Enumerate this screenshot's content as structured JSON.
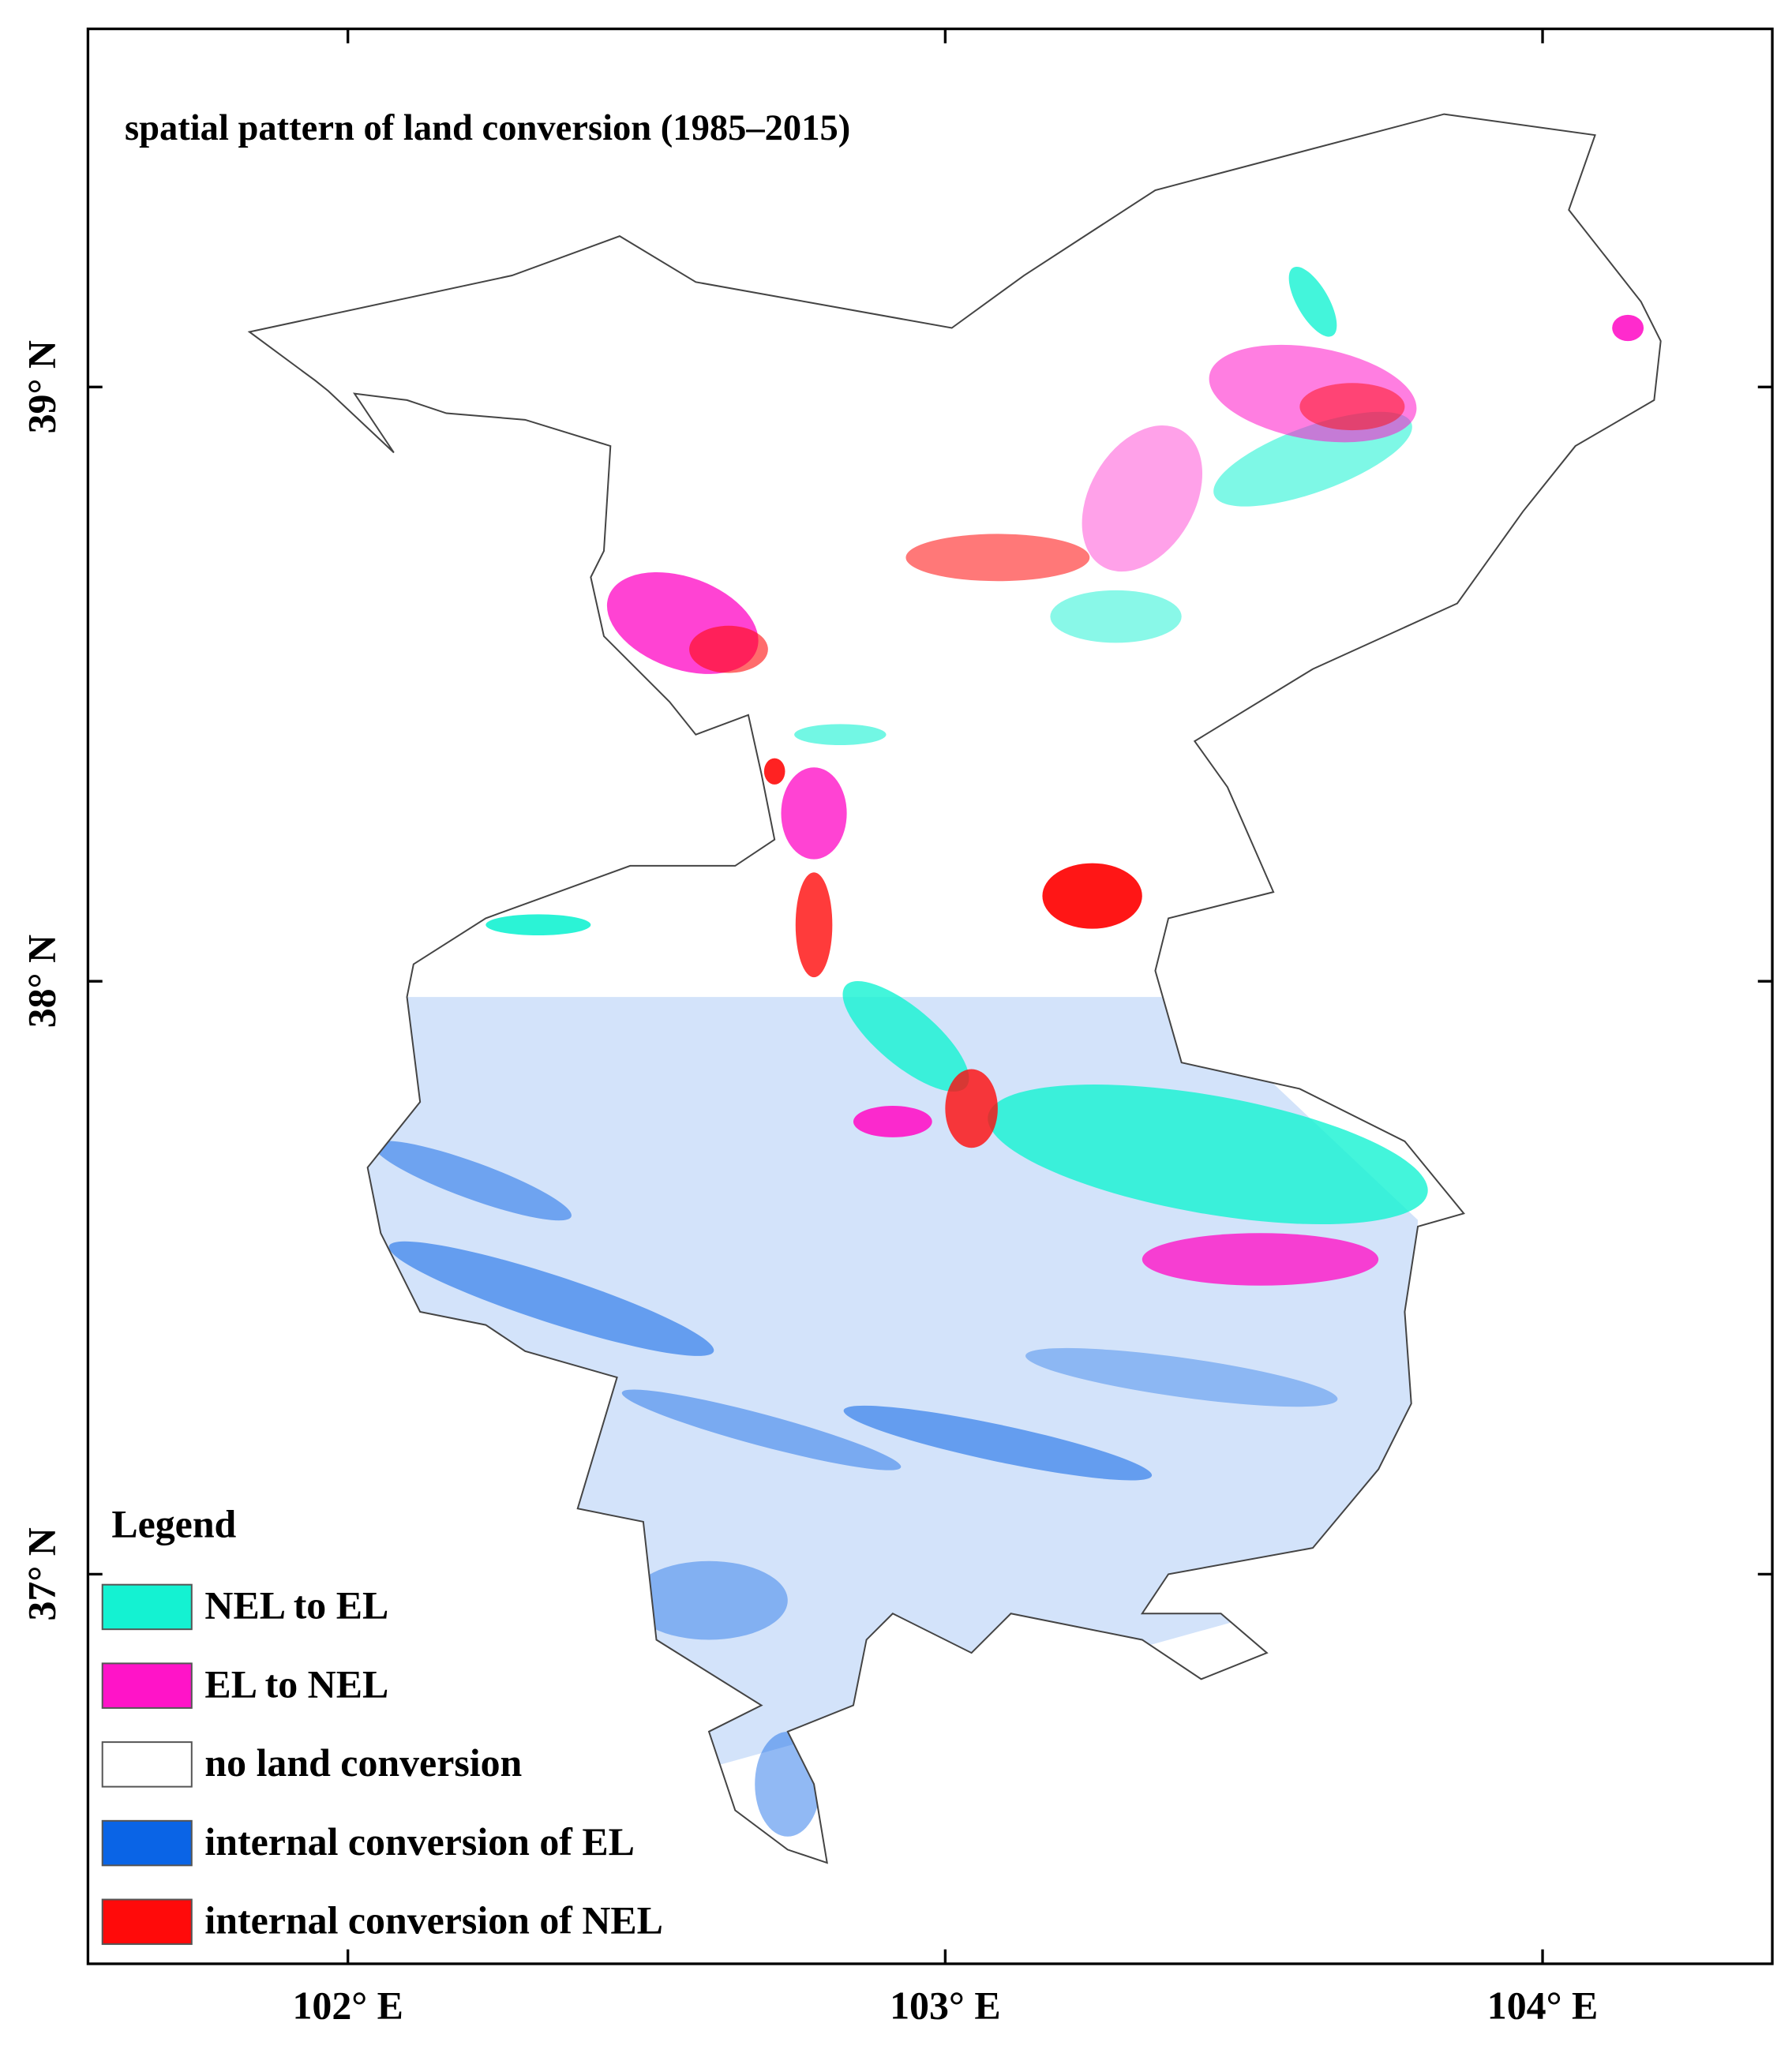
{
  "map": {
    "title": "spatial pattern of land conversion (1985–2015)",
    "latitude_labels": [
      "39° N",
      "38° N",
      "37° N"
    ],
    "longitude_labels": [
      "102° E",
      "103° E",
      "104° E"
    ],
    "legend": {
      "title": "Legend",
      "items": [
        {
          "label": "NEL to EL",
          "color": "#14f2d2"
        },
        {
          "label": "EL to NEL",
          "color": "#ff14c8"
        },
        {
          "label": "no land conversion",
          "color": "#ffffff"
        },
        {
          "label": "internal conversion of EL",
          "color": "#0a64e6"
        },
        {
          "label": "internal conversion of NEL",
          "color": "#ff0a0a"
        }
      ]
    }
  }
}
